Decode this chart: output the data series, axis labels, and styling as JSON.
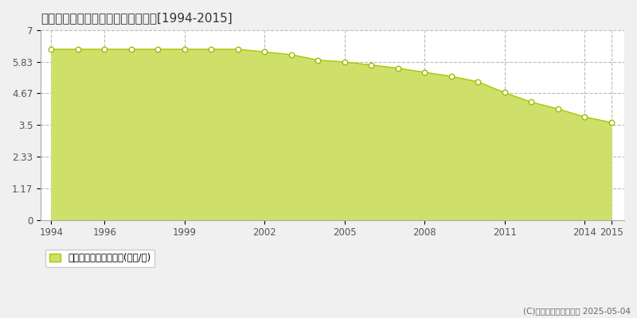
{
  "title": "三戸郡五戸町愛宕丁　公示地価推移[1994-2015]",
  "years": [
    1994,
    1995,
    1996,
    1997,
    1998,
    1999,
    2000,
    2001,
    2002,
    2003,
    2004,
    2005,
    2006,
    2007,
    2008,
    2009,
    2010,
    2011,
    2012,
    2013,
    2014,
    2015
  ],
  "values": [
    6.3,
    6.3,
    6.3,
    6.3,
    6.3,
    6.3,
    6.3,
    6.3,
    6.2,
    6.1,
    5.9,
    5.83,
    5.72,
    5.6,
    5.45,
    5.3,
    5.1,
    4.7,
    4.35,
    4.1,
    3.8,
    3.6
  ],
  "line_color": "#a8c800",
  "fill_color": "#cfe06a",
  "fill_alpha": 1.0,
  "marker_facecolor": "white",
  "marker_edgecolor": "#a0ba00",
  "plot_bg_color": "#ffffff",
  "fig_bg_color": "#f0f0f0",
  "yticks": [
    0,
    1.17,
    2.33,
    3.5,
    4.67,
    5.83,
    7
  ],
  "ytick_labels": [
    "0",
    "1.17",
    "2.33",
    "3.5",
    "4.67",
    "5.83",
    "7"
  ],
  "xtick_positions": [
    1994,
    1996,
    1999,
    2002,
    2005,
    2008,
    2011,
    2014,
    2015
  ],
  "xtick_labels": [
    "1994",
    "1996",
    "1999",
    "2002",
    "2005",
    "2008",
    "2011",
    "2014",
    "2015"
  ],
  "ylim": [
    0,
    7
  ],
  "xlim": [
    1993.6,
    2015.5
  ],
  "legend_label": "公示地価　平均坪単価(万円/坪)",
  "copyright": "(C)土地価格ドットコム 2025-05-04",
  "grid_color": "#bbbbbb",
  "grid_style": "--"
}
